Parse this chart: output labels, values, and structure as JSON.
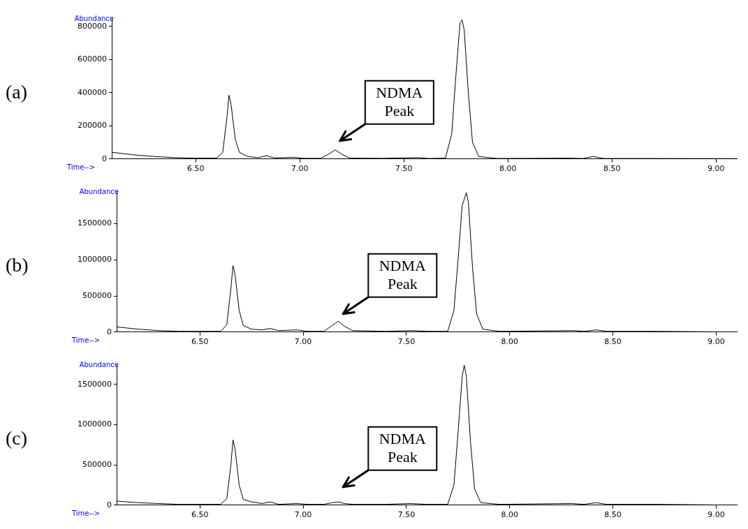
{
  "chart_data": [
    {
      "type": "line",
      "title": "(a)",
      "ylabel": "Abundance",
      "xlabel": "Time-->",
      "color": "#000000",
      "x": [
        6.1,
        6.2,
        6.3,
        6.4,
        6.5,
        6.6,
        6.63,
        6.65,
        6.66,
        6.67,
        6.69,
        6.71,
        6.75,
        6.8,
        6.84,
        6.88,
        6.97,
        7.02,
        7.1,
        7.14,
        7.17,
        7.2,
        7.24,
        7.4,
        7.57,
        7.62,
        7.7,
        7.73,
        7.75,
        7.77,
        7.78,
        7.79,
        7.81,
        7.83,
        7.86,
        7.95,
        8.3,
        8.36,
        8.41,
        8.46,
        8.7,
        9.1
      ],
      "values": [
        40000,
        25000,
        15000,
        8000,
        5000,
        5000,
        40000,
        250000,
        385000,
        330000,
        120000,
        40000,
        15000,
        8000,
        20000,
        6000,
        10000,
        4000,
        4000,
        30000,
        55000,
        30000,
        5000,
        4000,
        8000,
        3000,
        5000,
        150000,
        500000,
        820000,
        840000,
        780000,
        400000,
        100000,
        15000,
        3000,
        5000,
        3000,
        15000,
        3000,
        3000,
        2000
      ],
      "xlim": [
        6.1,
        9.1
      ],
      "ylim": [
        0,
        850000
      ],
      "xticks": [
        {
          "value": 6.5,
          "label": "6.50"
        },
        {
          "value": 7,
          "label": "7.00"
        },
        {
          "value": 7.5,
          "label": "7.50"
        },
        {
          "value": 8,
          "label": "8.00"
        },
        {
          "value": 8.5,
          "label": "8.50"
        },
        {
          "value": 9,
          "label": "9.00"
        }
      ],
      "yticks": [
        0,
        200000,
        400000,
        600000,
        800000
      ],
      "annotations": [
        "NDMA Peak"
      ]
    },
    {
      "type": "line",
      "title": "(b)",
      "ylabel": "Abundance",
      "xlabel": "Time-->",
      "color": "#000000",
      "x": [
        6.1,
        6.2,
        6.3,
        6.4,
        6.5,
        6.6,
        6.63,
        6.65,
        6.66,
        6.67,
        6.69,
        6.71,
        6.75,
        6.8,
        6.84,
        6.88,
        6.97,
        7.02,
        7.1,
        7.14,
        7.17,
        7.2,
        7.24,
        7.4,
        7.53,
        7.6,
        7.7,
        7.73,
        7.75,
        7.77,
        7.79,
        7.8,
        7.82,
        7.84,
        7.87,
        7.95,
        8.31,
        8.36,
        8.42,
        8.47,
        8.7,
        9.1
      ],
      "values": [
        70000,
        40000,
        20000,
        10000,
        10000,
        10000,
        100000,
        600000,
        920000,
        800000,
        300000,
        90000,
        40000,
        30000,
        50000,
        20000,
        30000,
        10000,
        10000,
        90000,
        150000,
        80000,
        20000,
        10000,
        20000,
        10000,
        10000,
        300000,
        1000000,
        1750000,
        1930000,
        1800000,
        900000,
        250000,
        40000,
        10000,
        20000,
        10000,
        30000,
        10000,
        10000,
        0
      ],
      "xlim": [
        6.1,
        9.1
      ],
      "ylim": [
        0,
        1950000
      ],
      "xticks": [
        {
          "value": 6.5,
          "label": "6.50"
        },
        {
          "value": 7,
          "label": "7.00"
        },
        {
          "value": 7.5,
          "label": "7.50"
        },
        {
          "value": 8,
          "label": "8.00"
        },
        {
          "value": 8.5,
          "label": "8.50"
        },
        {
          "value": 9,
          "label": "9.00"
        }
      ],
      "yticks": [
        0,
        500000,
        1000000,
        1500000
      ],
      "annotations": [
        "NDMA Peak"
      ]
    },
    {
      "type": "line",
      "title": "(c)",
      "ylabel": "Abundance",
      "xlabel": "Time-->",
      "color": "#000000",
      "x": [
        6.1,
        6.2,
        6.3,
        6.4,
        6.5,
        6.6,
        6.63,
        6.65,
        6.66,
        6.67,
        6.69,
        6.71,
        6.75,
        6.8,
        6.84,
        6.88,
        6.97,
        7.02,
        7.1,
        7.14,
        7.17,
        7.2,
        7.24,
        7.4,
        7.52,
        7.6,
        7.7,
        7.73,
        7.75,
        7.77,
        7.78,
        7.79,
        7.81,
        7.83,
        7.86,
        7.95,
        8.3,
        8.36,
        8.42,
        8.47,
        8.7,
        9.1
      ],
      "values": [
        50000,
        30000,
        20000,
        10000,
        10000,
        10000,
        80000,
        500000,
        810000,
        700000,
        250000,
        70000,
        40000,
        20000,
        40000,
        10000,
        20000,
        10000,
        10000,
        30000,
        40000,
        20000,
        10000,
        10000,
        20000,
        10000,
        10000,
        250000,
        900000,
        1600000,
        1740000,
        1600000,
        800000,
        200000,
        30000,
        10000,
        20000,
        10000,
        30000,
        10000,
        10000,
        0
      ],
      "xlim": [
        6.1,
        9.1
      ],
      "ylim": [
        0,
        1750000
      ],
      "xticks": [
        {
          "value": 6.5,
          "label": "6.50"
        },
        {
          "value": 7,
          "label": "7.00"
        },
        {
          "value": 7.5,
          "label": "7.50"
        },
        {
          "value": 8,
          "label": "8.00"
        },
        {
          "value": 8.5,
          "label": "8.50"
        },
        {
          "value": 9,
          "label": "9.00"
        }
      ],
      "yticks": [
        0,
        500000,
        1000000,
        1500000
      ],
      "annotations": [
        "NDMA Peak"
      ]
    }
  ]
}
